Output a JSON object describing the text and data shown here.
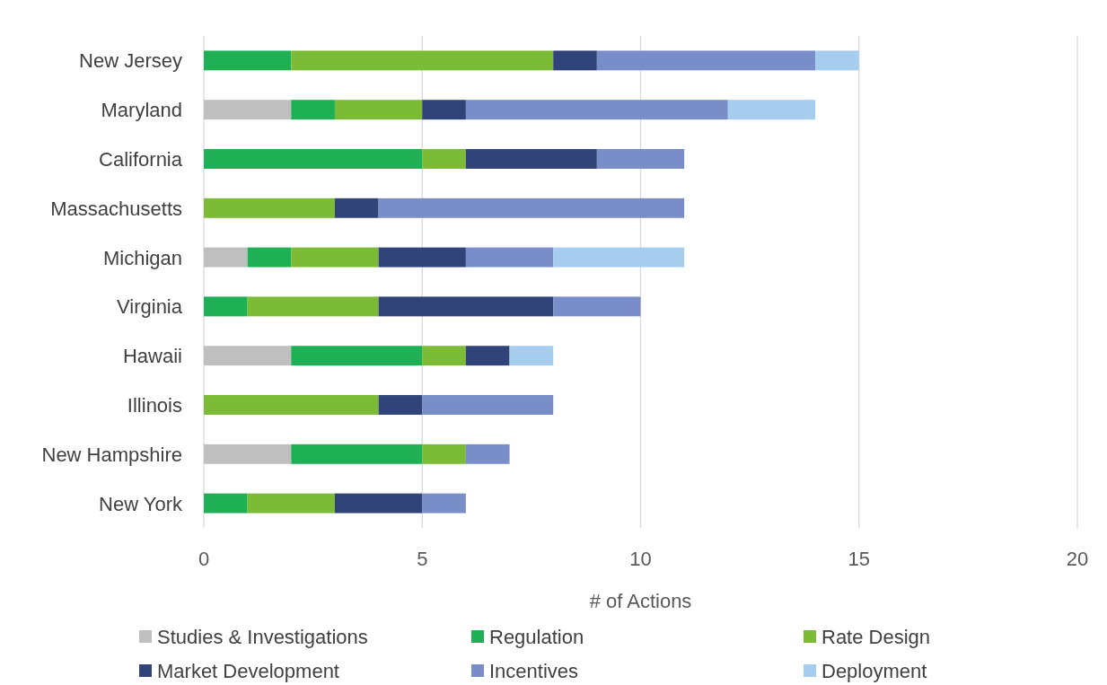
{
  "chart_data": {
    "type": "bar",
    "orientation": "horizontal",
    "stacked": true,
    "categories": [
      "New Jersey",
      "Maryland",
      "California",
      "Massachusetts",
      "Michigan",
      "Virginia",
      "Hawaii",
      "Illinois",
      "New Hampshire",
      "New York"
    ],
    "series": [
      {
        "name": "Studies & Investigations",
        "color": "#bfbfbf",
        "values": [
          0,
          2,
          0,
          0,
          1,
          0,
          2,
          0,
          2,
          0
        ]
      },
      {
        "name": "Regulation",
        "color": "#1faf55",
        "values": [
          2,
          1,
          5,
          0,
          1,
          1,
          3,
          0,
          3,
          1
        ]
      },
      {
        "name": "Rate Design",
        "color": "#7cbb35",
        "values": [
          6,
          2,
          1,
          3,
          2,
          3,
          1,
          4,
          1,
          2
        ]
      },
      {
        "name": "Market Development",
        "color": "#31447a",
        "values": [
          1,
          1,
          3,
          1,
          2,
          4,
          1,
          1,
          0,
          2
        ]
      },
      {
        "name": "Incentives",
        "color": "#798dc8",
        "values": [
          5,
          6,
          2,
          7,
          2,
          2,
          0,
          3,
          1,
          1
        ]
      },
      {
        "name": "Deployment",
        "color": "#a6cdee",
        "values": [
          1,
          2,
          0,
          0,
          3,
          0,
          1,
          0,
          0,
          0
        ]
      }
    ],
    "xlabel": "# of Actions",
    "xlim": [
      0,
      20
    ],
    "xticks": [
      0,
      5,
      10,
      15,
      20
    ],
    "grid": "x",
    "legend": "bottom"
  }
}
